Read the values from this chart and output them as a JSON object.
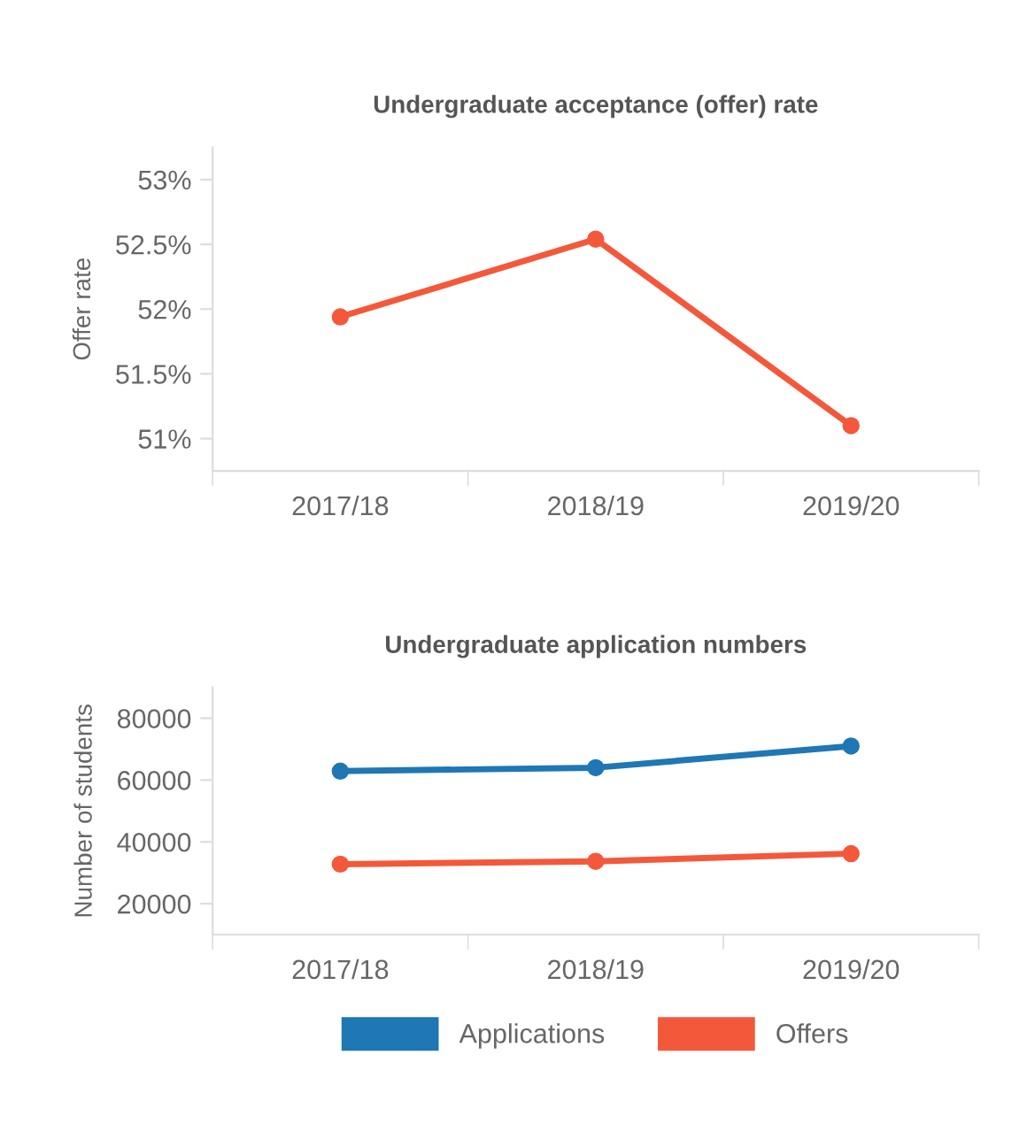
{
  "chart_data": [
    {
      "type": "line",
      "title": "Undergraduate acceptance (offer) rate",
      "ylabel": "Offer rate",
      "categories": [
        "2017/18",
        "2018/19",
        "2019/20"
      ],
      "series": [
        {
          "color": "#f4583a",
          "values": [
            51.94,
            52.54,
            51.1
          ]
        }
      ],
      "ylim": [
        50.75,
        53.25
      ],
      "yticks": [
        {
          "value": 51,
          "label": "51%"
        },
        {
          "value": 51.5,
          "label": "51.5%"
        },
        {
          "value": 52,
          "label": "52%"
        },
        {
          "value": 52.5,
          "label": "52.5%"
        },
        {
          "value": 53,
          "label": "53%"
        }
      ],
      "grid": false,
      "marker": "circle"
    },
    {
      "type": "line",
      "title": "Undergraduate application numbers",
      "ylabel": "Number of students",
      "categories": [
        "2017/18",
        "2018/19",
        "2019/20"
      ],
      "series": [
        {
          "name": "Applications",
          "color": "#1f77b4",
          "values": [
            62900,
            64000,
            71000
          ]
        },
        {
          "name": "Offers",
          "color": "#f4583a",
          "values": [
            32800,
            33700,
            36200
          ]
        }
      ],
      "ylim": [
        10000,
        90000
      ],
      "yticks": [
        20000,
        40000,
        60000,
        80000
      ],
      "grid": false,
      "marker": "circle",
      "legend": "bottom"
    }
  ]
}
